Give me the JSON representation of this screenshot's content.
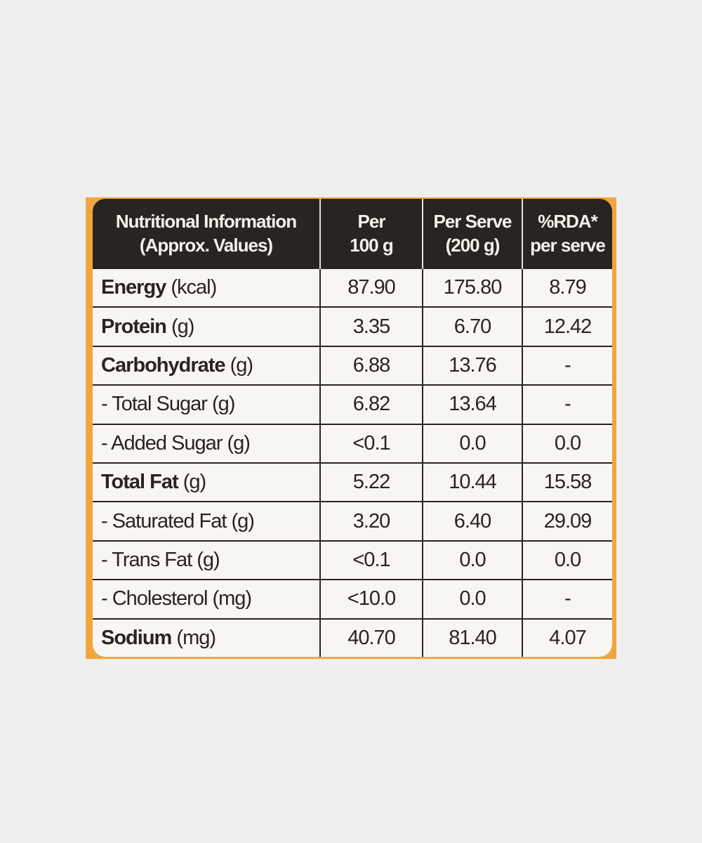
{
  "header": [
    [
      "Nutritional Information",
      "(Approx. Values)"
    ],
    [
      "Per",
      "100 g"
    ],
    [
      "Per Serve",
      "(200 g)"
    ],
    [
      "%RDA*",
      "per serve"
    ]
  ],
  "rows": [
    {
      "name": "Energy",
      "unit": "(kcal)",
      "values": [
        "87.90",
        "175.80",
        "8.79"
      ]
    },
    {
      "name": "Protein",
      "unit": "(g)",
      "values": [
        "3.35",
        "6.70",
        "12.42"
      ]
    },
    {
      "name": "Carbohydrate",
      "unit": "(g)",
      "values": [
        "6.88",
        "13.76",
        "-"
      ]
    },
    {
      "name": "- Total Sugar",
      "unit": "(g)",
      "values": [
        "6.82",
        "13.64",
        "-"
      ]
    },
    {
      "name": "- Added Sugar",
      "unit": "(g)",
      "values": [
        "<0.1",
        "0.0",
        "0.0"
      ]
    },
    {
      "name": "Total Fat",
      "unit": "(g)",
      "values": [
        "5.22",
        "10.44",
        "15.58"
      ]
    },
    {
      "name": "- Saturated Fat",
      "unit": "(g)",
      "values": [
        "3.20",
        "6.40",
        "29.09"
      ]
    },
    {
      "name": "- Trans Fat",
      "unit": "(g)",
      "values": [
        "<0.1",
        "0.0",
        "0.0"
      ]
    },
    {
      "name": "- Cholesterol",
      "unit": "(mg)",
      "values": [
        "<10.0",
        "0.0",
        "-"
      ]
    },
    {
      "name": "Sodium",
      "unit": "(mg)",
      "values": [
        "40.70",
        "81.40",
        "4.07"
      ]
    }
  ]
}
